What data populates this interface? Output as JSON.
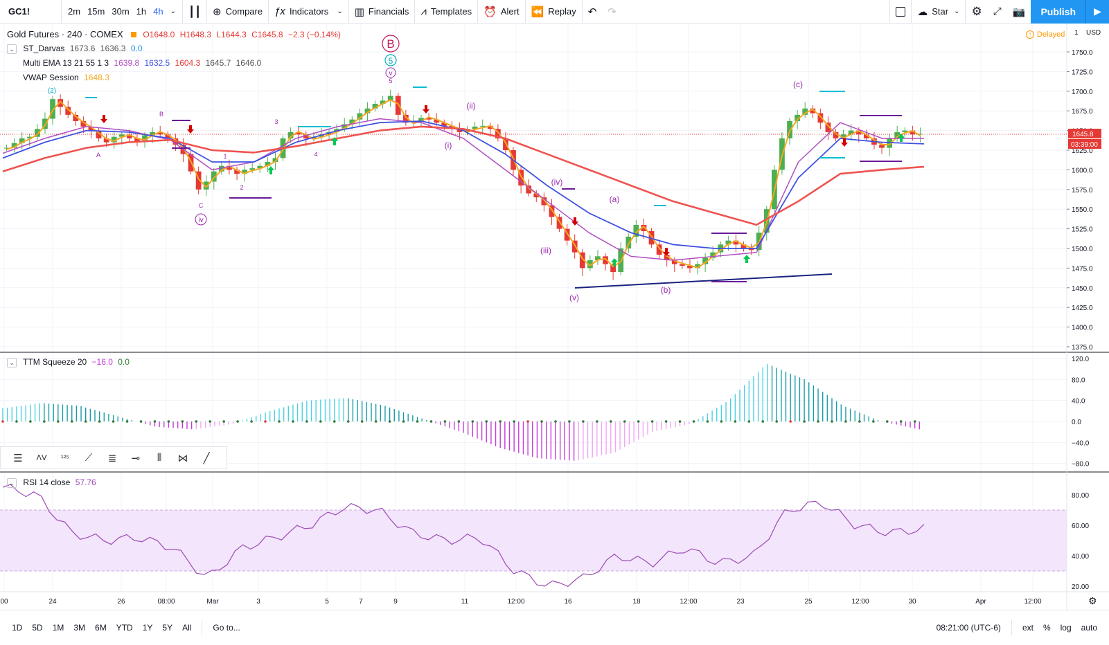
{
  "toolbar": {
    "symbol": "GC1!",
    "intervals": [
      "2m",
      "15m",
      "30m",
      "1h",
      "4h"
    ],
    "active_interval": "4h",
    "compare": "Compare",
    "indicators": "Indicators",
    "financials": "Financials",
    "templates": "Templates",
    "alert": "Alert",
    "replay": "Replay",
    "star": "Star",
    "publish": "Publish"
  },
  "legend": {
    "title": "Gold Futures · 240 · COMEX",
    "ohlc": {
      "o": "O1648.0",
      "h": "H1648.3",
      "l": "L1644.3",
      "c": "C1645.8",
      "chg": "−2.3 (−0.14%)"
    },
    "darvas": {
      "name": "ST_Darvas",
      "v1": "1673.6",
      "v2": "1636.3",
      "v3": "0.0"
    },
    "ema": {
      "name": "Multi EMA 13 21 55 1 3",
      "v1": "1639.8",
      "v2": "1632.5",
      "v3": "1604.3",
      "v4": "1645.7",
      "v5": "1646.0"
    },
    "vwap": {
      "name": "VWAP Session",
      "v1": "1648.3"
    },
    "delayed": "Delayed"
  },
  "squeeze_legend": {
    "name": "TTM Squeeze 20",
    "v1": "−16.0",
    "v2": "0.0"
  },
  "rsi_legend": {
    "name": "RSI 14 close",
    "v1": "57.76"
  },
  "price_axis": {
    "unit": "USD",
    "labels": [
      "1750.0",
      "1725.0",
      "1700.0",
      "1675.0",
      "1650.0",
      "1625.0",
      "1600.0",
      "1575.0",
      "1550.0",
      "1525.0",
      "1500.0",
      "1475.0",
      "1450.0",
      "1425.0",
      "1400.0",
      "1375.0"
    ],
    "last_price": "1645.8",
    "countdown": "03:39:00",
    "top_label": "1"
  },
  "squeeze_axis": {
    "labels": [
      "120.0",
      "80.0",
      "40.0",
      "0.0",
      "−40.0",
      "−80.0"
    ]
  },
  "rsi_axis": {
    "labels": [
      "80.00",
      "60.00",
      "40.00",
      "20.00"
    ]
  },
  "time_axis": {
    "labels": [
      "00",
      "24",
      "26",
      "08:00",
      "Mar",
      "3",
      "5",
      "7",
      "9",
      "11",
      "12:00",
      "16",
      "18",
      "12:00",
      "23",
      "25",
      "12:00",
      "30",
      "Apr",
      "12:00"
    ]
  },
  "annotations": {
    "wave_B": "B",
    "wave_5": "5",
    "wave_v": "v",
    "wave_iv": "iv",
    "labels": [
      "(i)",
      "(ii)",
      "(iii)",
      "(iv)",
      "(v)",
      "(a)",
      "(b)",
      "(c)",
      "A",
      "B",
      "C",
      "1",
      "2",
      "3",
      "4",
      "5",
      "(2)"
    ]
  },
  "bottom": {
    "ranges": [
      "1D",
      "5D",
      "1M",
      "3M",
      "6M",
      "YTD",
      "1Y",
      "5Y",
      "All"
    ],
    "goto": "Go to...",
    "time": "08:21:00 (UTC-6)",
    "ext": "ext",
    "pct": "%",
    "log": "log",
    "auto": "auto"
  },
  "chart_data": {
    "type": "candlestick",
    "symbol": "GC1!",
    "interval": "240",
    "ylim": [
      1365,
      1760
    ],
    "series": [
      {
        "name": "close",
        "values": [
          1628,
          1634,
          1640,
          1642,
          1652,
          1665,
          1690,
          1680,
          1670,
          1662,
          1655,
          1650,
          1640,
          1635,
          1642,
          1645,
          1640,
          1636,
          1644,
          1648,
          1645,
          1640,
          1632,
          1620,
          1598,
          1575,
          1585,
          1598,
          1605,
          1600,
          1595,
          1600,
          1602,
          1605,
          1610,
          1615,
          1640,
          1648,
          1645,
          1640,
          1642,
          1645,
          1648,
          1652,
          1658,
          1664,
          1672,
          1678,
          1684,
          1688,
          1694,
          1670,
          1660,
          1662,
          1666,
          1664,
          1660,
          1656,
          1652,
          1648,
          1652,
          1655,
          1656,
          1652,
          1640,
          1625,
          1600,
          1580,
          1570,
          1565,
          1555,
          1540,
          1525,
          1510,
          1495,
          1475,
          1485,
          1490,
          1480,
          1470,
          1500,
          1515,
          1530,
          1522,
          1505,
          1492,
          1485,
          1480,
          1478,
          1475,
          1480,
          1488,
          1495,
          1505,
          1510,
          1505,
          1500,
          1498,
          1520,
          1550,
          1600,
          1640,
          1662,
          1670,
          1678,
          1672,
          1660,
          1648,
          1640,
          1645,
          1650,
          1645,
          1640,
          1632,
          1628,
          1640,
          1648,
          1650,
          1645,
          1645.8
        ]
      },
      {
        "name": "EMA 13",
        "values": [
          1621,
          1640,
          1655,
          1650,
          1638,
          1600,
          1610,
          1640,
          1655,
          1665,
          1660,
          1640,
          1600,
          1560,
          1520,
          1490,
          1485,
          1490,
          1495,
          1610,
          1660,
          1640,
          1640
        ]
      },
      {
        "name": "EMA 21",
        "values": [
          1615,
          1635,
          1650,
          1648,
          1640,
          1610,
          1610,
          1635,
          1650,
          1660,
          1662,
          1650,
          1620,
          1580,
          1545,
          1520,
          1505,
          1500,
          1500,
          1590,
          1640,
          1635,
          1633
        ]
      },
      {
        "name": "EMA 55",
        "values": [
          1598,
          1615,
          1628,
          1635,
          1638,
          1625,
          1622,
          1630,
          1640,
          1650,
          1655,
          1652,
          1640,
          1620,
          1600,
          1580,
          1560,
          1545,
          1530,
          1560,
          1595,
          1600,
          1604
        ]
      }
    ],
    "indicators": {
      "ttm_squeeze": [
        25,
        35,
        30,
        10,
        -10,
        -15,
        -5,
        20,
        40,
        45,
        30,
        5,
        -20,
        -50,
        -70,
        -75,
        -60,
        -20,
        -5,
        40,
        110,
        80,
        30,
        0,
        -15
      ],
      "rsi": [
        85,
        80,
        55,
        50,
        52,
        45,
        25,
        45,
        52,
        60,
        72,
        70,
        55,
        50,
        52,
        30,
        20,
        25,
        40,
        35,
        45,
        35,
        40,
        70,
        75,
        60,
        55,
        57.76
      ]
    }
  }
}
